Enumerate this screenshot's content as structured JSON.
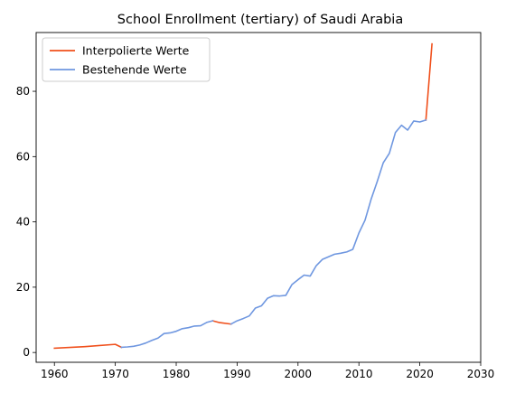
{
  "chart_data": {
    "type": "line",
    "title": "School Enrollment (tertiary) of Saudi Arabia",
    "xlabel": "",
    "ylabel": "",
    "xlim": [
      1957,
      2030
    ],
    "ylim": [
      -3,
      98
    ],
    "xticks": [
      1960,
      1970,
      1980,
      1990,
      2000,
      2010,
      2020,
      2030
    ],
    "yticks": [
      0,
      20,
      40,
      60,
      80
    ],
    "grid": false,
    "legend": {
      "placement": "top-left"
    },
    "series": [
      {
        "name": "Interpolierte Werte",
        "color": "#f0501c",
        "segments": [
          {
            "x": [
              1960,
              1965,
              1970,
              1971
            ],
            "y": [
              1.3,
              1.8,
              2.5,
              1.6
            ]
          },
          {
            "x": [
              1986,
              1987,
              1989
            ],
            "y": [
              9.7,
              9.2,
              8.7
            ]
          },
          {
            "x": [
              2021,
              2022
            ],
            "y": [
              71.2,
              94.5
            ]
          }
        ]
      },
      {
        "name": "Bestehende Werte",
        "color": "#6f97e0",
        "segments": [
          {
            "x": [
              1971,
              1972,
              1973,
              1974,
              1975,
              1976,
              1977,
              1978,
              1979,
              1980,
              1981,
              1982,
              1983,
              1984,
              1985,
              1986
            ],
            "y": [
              1.6,
              1.7,
              1.9,
              2.3,
              2.9,
              3.7,
              4.4,
              5.8,
              6.0,
              6.5,
              7.3,
              7.6,
              8.1,
              8.2,
              9.2,
              9.7
            ]
          },
          {
            "x": [
              1989,
              1990,
              1991,
              1992,
              1993,
              1994,
              1995,
              1996,
              1997,
              1998,
              1999,
              2000,
              2001,
              2002,
              2003,
              2004,
              2005,
              2006,
              2007,
              2008,
              2009,
              2010,
              2011,
              2012,
              2013,
              2014,
              2015,
              2016,
              2017,
              2018,
              2019,
              2020,
              2021
            ],
            "y": [
              8.7,
              9.7,
              10.4,
              11.2,
              13.6,
              14.3,
              16.6,
              17.4,
              17.3,
              17.5,
              20.8,
              22.3,
              23.7,
              23.4,
              26.6,
              28.5,
              29.3,
              30.1,
              30.4,
              30.8,
              31.6,
              36.6,
              40.5,
              46.9,
              52.3,
              58.1,
              61.0,
              67.4,
              69.6,
              68.1,
              70.9,
              70.6,
              71.2
            ]
          }
        ]
      }
    ]
  }
}
